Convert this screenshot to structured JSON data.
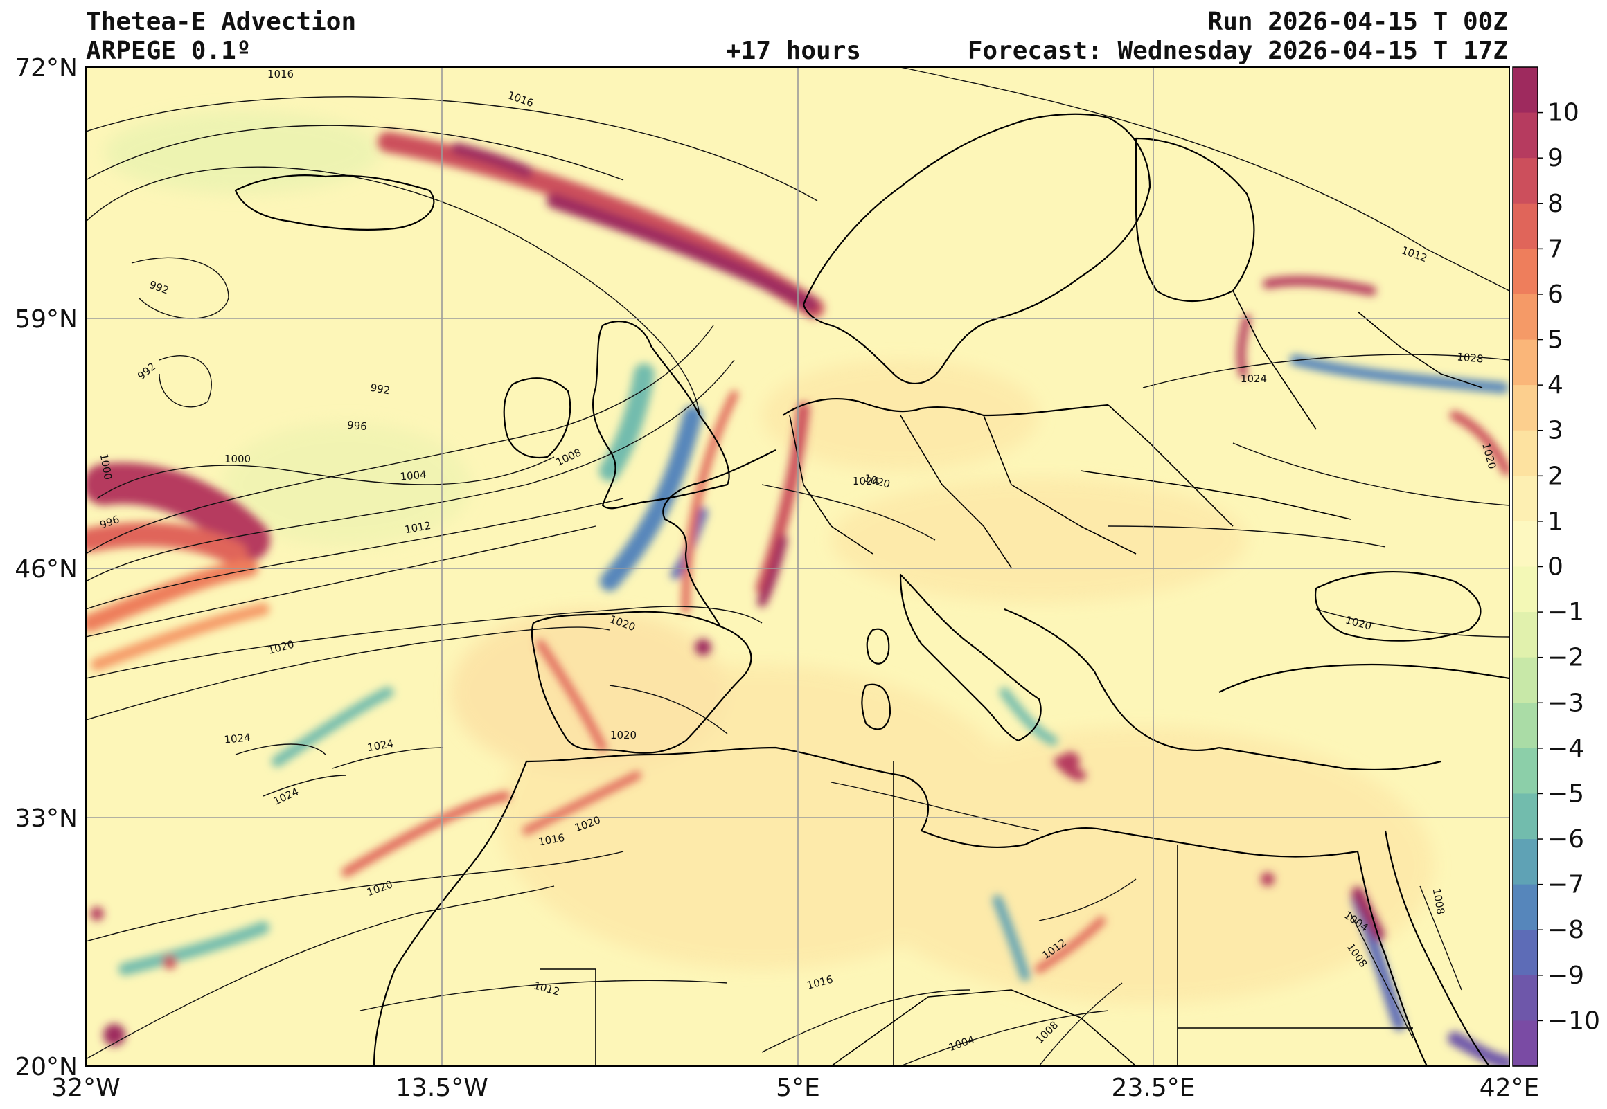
{
  "header": {
    "title": "Thetea-E Advection",
    "model": "ARPEGE 0.1º",
    "lead": "+17 hours",
    "run": "Run 2026-04-15 T 00Z",
    "forecast": "Forecast: Wednesday 2026-04-15 T 17Z"
  },
  "map": {
    "lat_ticks": [
      "72°N",
      "59°N",
      "46°N",
      "33°N",
      "20°N"
    ],
    "lon_ticks": [
      "32°W",
      "13.5°W",
      "5°E",
      "23.5°E",
      "42°E"
    ],
    "background_color": "#fdf6b8",
    "isobar_labels": [
      "1016",
      "1016",
      "992",
      "992",
      "992",
      "996",
      "1000",
      "1000",
      "1004",
      "1008",
      "1012",
      "996",
      "1020",
      "1020",
      "1024",
      "1024",
      "1024",
      "1020",
      "1020",
      "1016",
      "1020",
      "1016",
      "1012",
      "1012",
      "1004",
      "1008",
      "1004",
      "1008",
      "1008",
      "1012",
      "1028",
      "1024",
      "1020",
      "1020",
      "1024",
      "1020"
    ]
  },
  "colorbar": {
    "labels": [
      "10",
      "9",
      "8",
      "7",
      "6",
      "5",
      "4",
      "3",
      "2",
      "1",
      "0",
      "−1",
      "−2",
      "−3",
      "−4",
      "−5",
      "−6",
      "−7",
      "−8",
      "−9",
      "−10"
    ],
    "colors": [
      "#9e2a5e",
      "#b63b5f",
      "#cc4f5c",
      "#e0655a",
      "#ee7e5c",
      "#f59a67",
      "#fab679",
      "#fccf8e",
      "#fde2a0",
      "#fdefb2",
      "#fdf8c0",
      "#f3f8b6",
      "#e1f1ad",
      "#c8e8a8",
      "#aadca6",
      "#8ccfa9",
      "#72bcad",
      "#5fa2b5",
      "#5686bb",
      "#5d6cb7",
      "#6e57aa",
      "#7a4ba4"
    ]
  }
}
